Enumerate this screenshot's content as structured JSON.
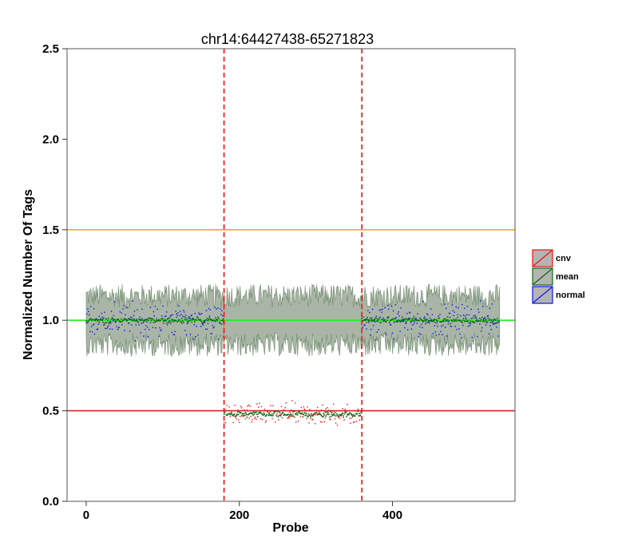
{
  "chart_data": {
    "type": "scatter",
    "title": "chr14:64427438-65271823",
    "xlabel": "Probe",
    "ylabel": "Normalized Number Of Tags",
    "xlim": [
      -25,
      560
    ],
    "ylim": [
      0,
      2.5
    ],
    "x_ticks": [
      0,
      200,
      400
    ],
    "y_ticks": [
      0.0,
      0.5,
      1.0,
      1.5,
      2.0,
      2.5
    ],
    "x_tick_labels": [
      "0",
      "200",
      "400"
    ],
    "y_tick_labels": [
      "0.0",
      "0.5",
      "1.0",
      "1.5",
      "2.0",
      "2.5"
    ],
    "grid": false,
    "legend_position": "right",
    "n_probes": 540,
    "cnv_region": [
      180,
      360
    ],
    "reference_lines": [
      {
        "y": 1.5,
        "color": "#f5a623"
      },
      {
        "y": 1.0,
        "color": "#22ee22"
      },
      {
        "y": 0.5,
        "color": "#dd2222"
      }
    ],
    "boundaries": [
      {
        "x": 180,
        "color": "#ee2222"
      },
      {
        "x": 360,
        "color": "#ee2222"
      }
    ],
    "segment_levels": [
      {
        "x_start": 0,
        "x_end": 180,
        "mean": 1.0
      },
      {
        "x_start": 180,
        "x_end": 360,
        "mean": 0.48
      },
      {
        "x_start": 360,
        "x_end": 540,
        "mean": 1.0
      }
    ],
    "band_color": "#a9b5a6",
    "series": [
      {
        "name": "cnv",
        "color": "#ee1111"
      },
      {
        "name": "mean",
        "color": "#116611"
      },
      {
        "name": "normal",
        "color": "#1111ee"
      }
    ]
  }
}
